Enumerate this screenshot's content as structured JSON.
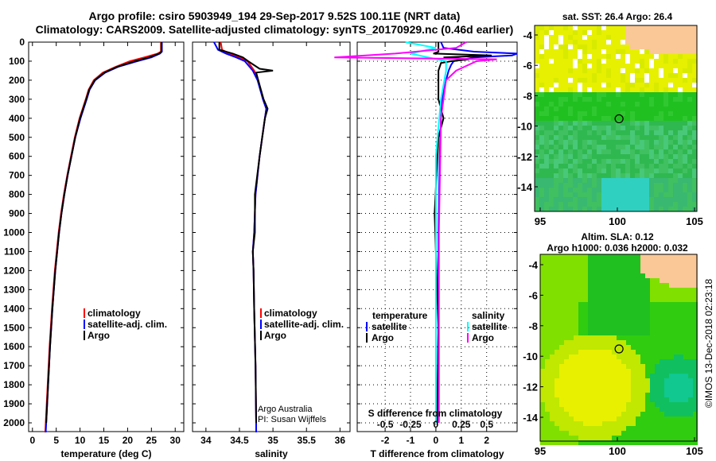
{
  "titles": {
    "line1": "Argo profile: csiro 5903949_194 29-Sep-2017 9.52S 100.11E (NRT data)",
    "line2": "Climatology: CARS2009. Satellite-adjusted climatology: synTS_20170929.nc (0.46d earlier)"
  },
  "colors": {
    "climatology": "#ff0000",
    "satellite": "#0000ff",
    "argo": "#000000",
    "sal_satellite": "#00ffff",
    "sal_argo": "#ff00ff",
    "land": "#fac896"
  },
  "chart_data": [
    {
      "type": "line",
      "title": "",
      "xlabel": "temperature (deg C)",
      "ylabel": "",
      "xlim": [
        -0.8,
        31.8
      ],
      "ylim": [
        2050,
        0
      ],
      "xticks": [
        0,
        5,
        10,
        15,
        20,
        25,
        30
      ],
      "yticks": [
        0,
        100,
        200,
        300,
        400,
        500,
        600,
        700,
        800,
        900,
        1000,
        1100,
        1200,
        1300,
        1400,
        1500,
        1600,
        1700,
        1800,
        1900,
        2000
      ],
      "legend": [
        "climatology",
        "satellite-adj. clim.",
        "Argo"
      ],
      "series": [
        {
          "name": "climatology",
          "depth": [
            0,
            50,
            60,
            80,
            100,
            130,
            160,
            200,
            250,
            300,
            400,
            500,
            600,
            700,
            800,
            900,
            1000,
            1200,
            1400,
            1600,
            1800,
            2000,
            2050
          ],
          "values": [
            27,
            27,
            26.3,
            23.5,
            20.5,
            17.5,
            14.8,
            12.9,
            11.8,
            11.2,
            9.9,
            8.9,
            8.1,
            7.3,
            6.6,
            6.0,
            5.5,
            4.7,
            4.1,
            3.6,
            3.2,
            2.8,
            2.7
          ]
        },
        {
          "name": "satellite-adj. clim.",
          "depth": [
            0,
            50,
            60,
            80,
            100,
            130,
            160,
            200,
            250,
            300,
            400,
            500,
            600,
            700,
            800,
            900,
            1000,
            1200,
            1400,
            1600,
            1800,
            2000,
            2050
          ],
          "values": [
            27.2,
            27.2,
            26.8,
            25,
            22,
            18,
            15.3,
            13.2,
            12,
            11.4,
            10.1,
            9.0,
            8.2,
            7.4,
            6.7,
            6.1,
            5.6,
            4.8,
            4.2,
            3.7,
            3.3,
            2.9,
            2.8
          ]
        },
        {
          "name": "Argo",
          "depth": [
            0,
            50,
            60,
            80,
            100,
            130,
            160,
            200,
            250,
            300,
            400,
            500,
            600,
            700,
            800,
            900,
            1000,
            1200,
            1400,
            1600,
            1800,
            2000
          ],
          "values": [
            27.1,
            27.1,
            26.6,
            24.5,
            21.5,
            17.8,
            15.1,
            13.1,
            11.9,
            11.3,
            10.0,
            9.0,
            8.2,
            7.4,
            6.7,
            6.1,
            5.6,
            4.8,
            4.2,
            3.7,
            3.3,
            2.9
          ]
        }
      ]
    },
    {
      "type": "line",
      "xlabel": "salinity",
      "xlim": [
        33.8,
        36.15
      ],
      "ylim": [
        2050,
        0
      ],
      "xticks": [
        34,
        34.5,
        35,
        35.5,
        36
      ],
      "legend": [
        "climatology",
        "satellite-adj. clim.",
        "Argo"
      ],
      "annotation": [
        "Argo Australia",
        "PI: Susan Wijffels"
      ],
      "series": [
        {
          "name": "climatology",
          "depth": [
            0,
            40,
            60,
            80,
            100,
            150,
            200,
            300,
            350,
            400,
            500,
            600,
            800,
            1000,
            1100,
            1200,
            1400,
            1700,
            2000,
            2050
          ],
          "values": [
            34.22,
            34.24,
            34.35,
            34.5,
            34.62,
            34.72,
            34.78,
            34.85,
            34.9,
            34.88,
            34.84,
            34.8,
            34.74,
            34.72,
            34.7,
            34.71,
            34.72,
            34.74,
            34.75,
            34.75
          ]
        },
        {
          "name": "satellite-adj. clim.",
          "depth": [
            0,
            40,
            60,
            80,
            100,
            150,
            200,
            300,
            350,
            400,
            500,
            600,
            800,
            1000,
            1100,
            1200,
            1400,
            1700,
            2000,
            2050
          ],
          "values": [
            34.12,
            34.18,
            34.3,
            34.45,
            34.58,
            34.7,
            34.77,
            34.85,
            34.9,
            34.88,
            34.84,
            34.8,
            34.74,
            34.72,
            34.7,
            34.71,
            34.72,
            34.74,
            34.75,
            34.75
          ]
        },
        {
          "name": "Argo",
          "depth": [
            0,
            40,
            60,
            80,
            100,
            140,
            150,
            160,
            200,
            300,
            350,
            400,
            500,
            600,
            800,
            1000,
            1100,
            1200,
            1400,
            1700,
            2000
          ],
          "values": [
            34.2,
            34.2,
            34.4,
            34.55,
            34.63,
            34.8,
            35.0,
            34.75,
            34.78,
            34.86,
            34.92,
            34.88,
            34.84,
            34.8,
            34.73,
            34.73,
            34.7,
            34.71,
            34.72,
            34.74,
            34.75
          ]
        }
      ]
    },
    {
      "type": "line",
      "xlabel": "T difference from climatology",
      "x2label": "S difference from climatology",
      "xlim": [
        -3.1,
        3.2
      ],
      "ylim": [
        2050,
        0
      ],
      "xticks": [
        -2,
        -1,
        0,
        1,
        2
      ],
      "x2ticks": [
        "-0.5",
        "-0.25",
        "0",
        "0.25",
        "0.5"
      ],
      "legend_temperature": {
        "title": "temperature",
        "items": [
          "satellite",
          "Argo"
        ]
      },
      "legend_salinity": {
        "title": "salinity",
        "items": [
          "satellite",
          "Argo"
        ]
      },
      "series": [
        {
          "name": "T satellite",
          "depth": [
            0,
            30,
            50,
            60,
            70,
            80,
            100,
            120,
            150,
            200,
            250,
            300,
            400,
            600,
            1000,
            1500,
            2000
          ],
          "values": [
            0.2,
            0.3,
            1.5,
            3.2,
            3.0,
            1.5,
            0.7,
            0.6,
            0.5,
            0.4,
            0.3,
            0.25,
            0.2,
            0.15,
            0.1,
            0.1,
            0.05
          ]
        },
        {
          "name": "T Argo",
          "depth": [
            0,
            50,
            60,
            70,
            80,
            90,
            100,
            110,
            150,
            200,
            300,
            400,
            500,
            900,
            1500,
            2000
          ],
          "values": [
            0.1,
            0.1,
            -0.1,
            2.2,
            0.3,
            1.3,
            0.6,
            0.2,
            0.1,
            0.1,
            0.1,
            0.3,
            0.1,
            -0.05,
            0.1,
            0.05
          ]
        },
        {
          "name": "S satellite",
          "depth": [
            0,
            30,
            60,
            100,
            150,
            300,
            600,
            1000,
            2000
          ],
          "values": [
            -0.3,
            0,
            -0.25,
            0.1,
            0.1,
            0.05,
            0,
            0,
            0
          ]
        },
        {
          "name": "S Argo",
          "depth": [
            0,
            30,
            60,
            80,
            90,
            100,
            150,
            200,
            400,
            1000,
            2000
          ],
          "values": [
            0.3,
            0.2,
            -0.4,
            -1.0,
            0.6,
            0.4,
            0.2,
            0.1,
            0.05,
            0.03,
            0.03
          ]
        }
      ]
    },
    {
      "type": "heatmap",
      "title": "sat. SST: 26.4 Argo: 26.4",
      "xticks": [
        95,
        100,
        105
      ],
      "yticks": [
        -4,
        -6,
        -8,
        -10,
        -12,
        -14
      ],
      "marker": [
        100.11,
        -9.52
      ]
    },
    {
      "type": "heatmap",
      "title": "Altim. SLA: 0.12",
      "subtitle": "Argo h1000: 0.036 h2000: 0.032",
      "xticks": [
        95,
        100,
        105
      ],
      "yticks": [
        -4,
        -6,
        -8,
        -10,
        -12,
        -14
      ],
      "marker": [
        100.11,
        -9.52
      ]
    }
  ],
  "credit": "©IMOS 13-Dec-2018 02:23:18"
}
